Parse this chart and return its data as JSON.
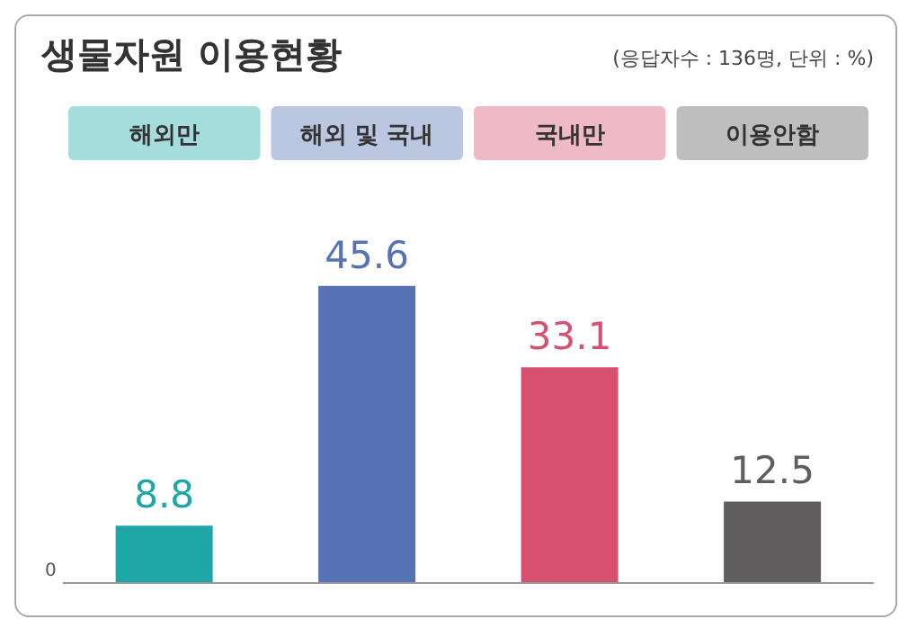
{
  "chart_data": {
    "type": "bar",
    "title": "생물자원 이용현황",
    "subtitle": "(응답자수 : 136명, 단위 : %)",
    "categories": [
      "해외만",
      "해외 및 국내",
      "국내만",
      "이용안함"
    ],
    "values": [
      8.8,
      45.6,
      33.1,
      12.5
    ],
    "colors": [
      "#1fa7a8",
      "#5572b4",
      "#d8506f",
      "#5f5d5d"
    ],
    "data_labels": true,
    "annotations": [
      "0"
    ]
  }
}
